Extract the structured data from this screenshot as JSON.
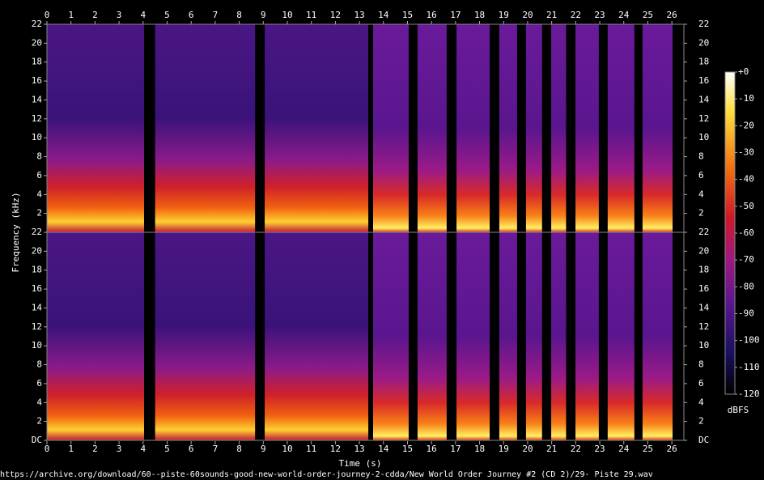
{
  "chart_data": {
    "type": "spectrogram",
    "xlabel": "Time (s)",
    "ylabel": "Frequency (kHz)",
    "xlim": [
      0,
      26.5
    ],
    "xticks": [
      0,
      1,
      2,
      3,
      4,
      5,
      6,
      7,
      8,
      9,
      10,
      11,
      12,
      13,
      14,
      15,
      16,
      17,
      18,
      19,
      20,
      21,
      22,
      23,
      24,
      25,
      26
    ],
    "ylim": [
      0,
      22
    ],
    "channels": [
      {
        "yticks": [
          2,
          4,
          6,
          8,
          10,
          12,
          14,
          16,
          18,
          20,
          22
        ]
      },
      {
        "yticks": [
          {
            "value": 0,
            "label": "DC"
          },
          2,
          4,
          6,
          8,
          10,
          12,
          14,
          16,
          18,
          20,
          22
        ]
      }
    ],
    "segments": [
      [
        0,
        4.04
      ],
      [
        4.5,
        8.66
      ],
      [
        9.06,
        13.37
      ],
      [
        13.57,
        15.05
      ],
      [
        15.42,
        16.63
      ],
      [
        17.04,
        18.42
      ],
      [
        18.82,
        19.56
      ],
      [
        19.93,
        20.6
      ],
      [
        20.98,
        21.6
      ],
      [
        21.99,
        22.96
      ],
      [
        23.33,
        24.44
      ],
      [
        24.78,
        26.03
      ]
    ],
    "colorbar": {
      "label": "dBFS",
      "lim": [
        -120,
        0
      ],
      "ticks": [
        {
          "value": 0,
          "label": "+0"
        },
        -10,
        -20,
        -30,
        -40,
        -50,
        -60,
        -70,
        -80,
        -90,
        -100,
        -110,
        -120
      ]
    },
    "footer": "https://archive.org/download/60--piste-60sounds-good-new-world-order-journey-2-cdda/New World Order Journey #2 (CD 2)/29- Piste 29.wav"
  }
}
